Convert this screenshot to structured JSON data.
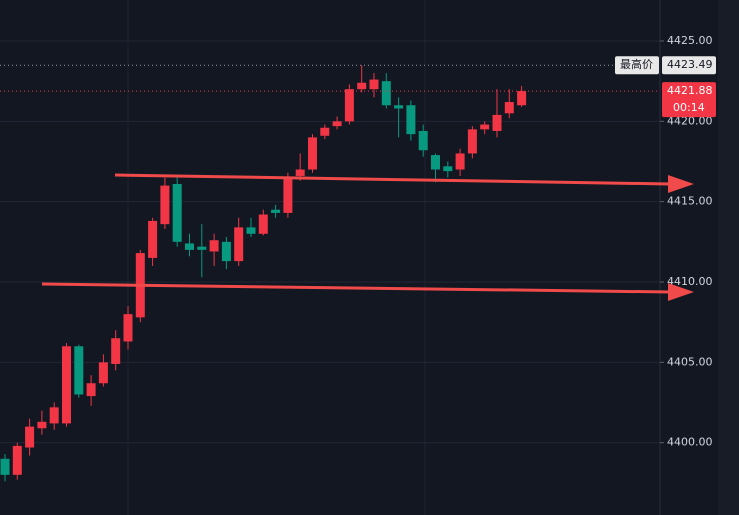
{
  "chart_data": {
    "type": "candlestick",
    "open": [
      4399.0,
      4398.0,
      4399.7,
      4400.9,
      4401.2,
      4401.2,
      4406.0,
      4402.9,
      4403.7,
      4404.9,
      4406.3,
      4407.8,
      4411.5,
      4413.6,
      4416.1,
      4412.4,
      4412.2,
      4411.9,
      4412.5,
      4411.3,
      4413.4,
      4413.0,
      4414.5,
      4414.3,
      4416.6,
      4417.0,
      4419.1,
      4419.7,
      4420.0,
      4422.0,
      4422.0,
      4422.5,
      4421.0,
      4421.0,
      4419.4,
      4417.9,
      4417.2,
      4417.0,
      4418.0,
      4419.5,
      4419.4,
      4420.5,
      4421.0
    ],
    "high": [
      4399.3,
      4400.0,
      4401.5,
      4402.0,
      4402.5,
      4406.2,
      4406.1,
      4404.2,
      4405.5,
      4407.0,
      4408.5,
      4412.0,
      4414.0,
      4416.5,
      4416.6,
      4413.0,
      4413.6,
      4413.0,
      4412.8,
      4414.0,
      4414.0,
      4414.5,
      4414.8,
      4416.8,
      4418.0,
      4419.2,
      4419.8,
      4420.3,
      4422.3,
      4423.49,
      4423.0,
      4423.0,
      4421.5,
      4421.3,
      4419.8,
      4418.0,
      4417.5,
      4418.3,
      4419.7,
      4420.0,
      4422.0,
      4422.0,
      4422.2
    ],
    "low": [
      4397.6,
      4397.7,
      4399.2,
      4400.5,
      4400.8,
      4401.0,
      4402.8,
      4402.3,
      4403.5,
      4404.5,
      4405.8,
      4407.5,
      4411.0,
      4413.3,
      4412.2,
      4411.6,
      4410.3,
      4411.0,
      4410.8,
      4411.0,
      4412.8,
      4412.9,
      4414.0,
      4414.0,
      4416.3,
      4416.8,
      4418.9,
      4419.5,
      4419.8,
      4421.8,
      4421.5,
      4420.8,
      4419.0,
      4418.8,
      4417.8,
      4416.2,
      4416.5,
      4416.6,
      4417.7,
      4419.2,
      4419.0,
      4420.2,
      4420.9
    ],
    "close": [
      4398.0,
      4399.8,
      4401.0,
      4401.3,
      4402.2,
      4406.0,
      4403.0,
      4403.7,
      4405.0,
      4406.5,
      4408.0,
      4411.8,
      4413.8,
      4416.0,
      4412.5,
      4412.0,
      4412.0,
      4412.6,
      4411.3,
      4413.4,
      4413.0,
      4414.2,
      4414.3,
      4416.5,
      4417.0,
      4419.0,
      4419.6,
      4420.0,
      4422.0,
      4422.4,
      4422.6,
      4421.0,
      4420.8,
      4419.2,
      4418.2,
      4417.0,
      4416.9,
      4418.0,
      4419.5,
      4419.8,
      4420.4,
      4421.2,
      4421.88
    ],
    "up_color": "#f23645",
    "down_color": "#089981",
    "ylim": [
      4395.5,
      4427.55
    ],
    "yticks": [
      {
        "value": 4400,
        "label": "4400.00"
      },
      {
        "value": 4405,
        "label": "4405.00"
      },
      {
        "value": 4410,
        "label": "4410.00"
      },
      {
        "value": 4415,
        "label": "4415.00"
      },
      {
        "value": 4420,
        "label": "4420.00"
      },
      {
        "value": 4425,
        "label": "4425.00"
      }
    ],
    "grid": true,
    "high_label": "最高价",
    "high_value": 4423.49,
    "last_value": 4421.88,
    "countdown": "00:14"
  }
}
